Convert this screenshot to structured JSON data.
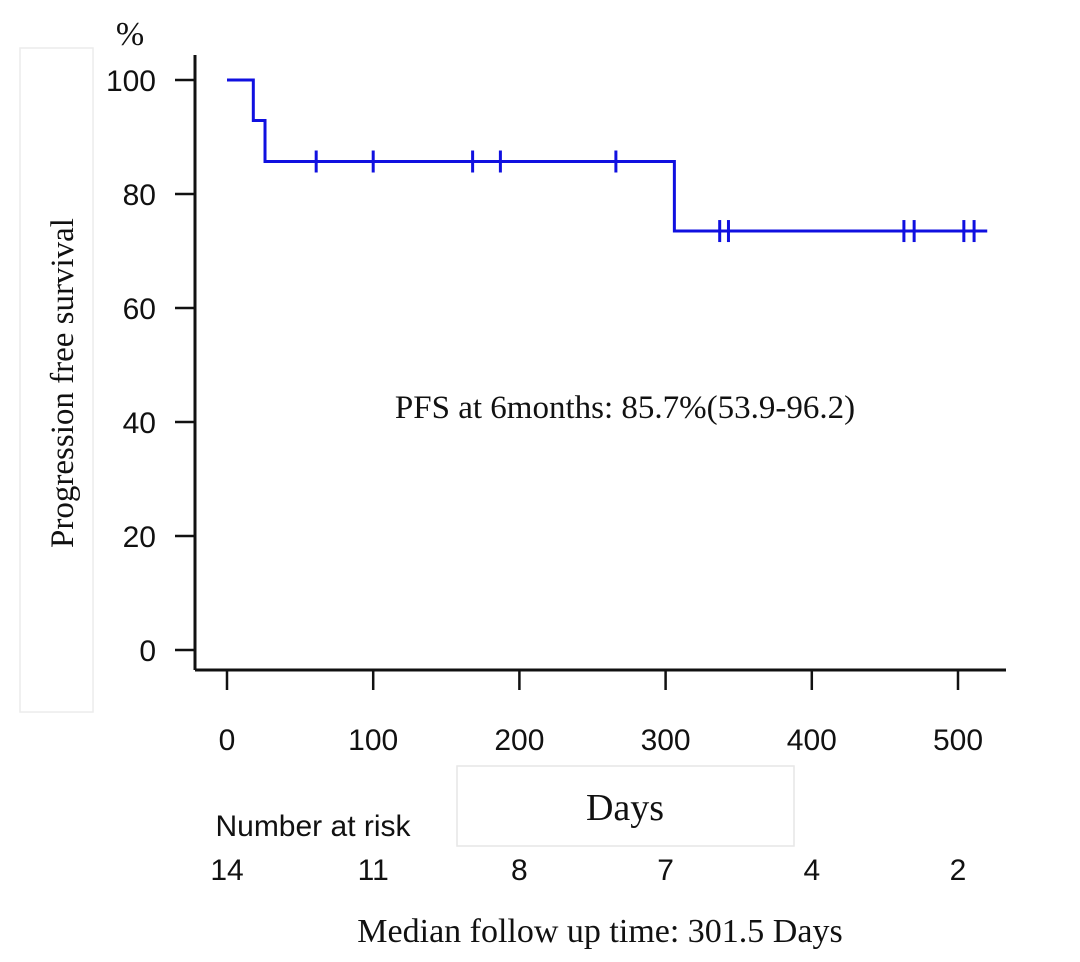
{
  "chart_data": {
    "type": "line",
    "subtype": "kaplan-meier",
    "ylabel": "Progression free survival",
    "yunit": "%",
    "xlabel": "Days",
    "xlim": [
      -20,
      530
    ],
    "ylim": [
      0,
      100
    ],
    "xticks": [
      0,
      100,
      200,
      300,
      400,
      500
    ],
    "yticks": [
      0,
      20,
      40,
      60,
      80,
      100
    ],
    "series": [
      {
        "name": "PFS",
        "color": "#1010e0",
        "steps": [
          {
            "x": 0,
            "y": 100
          },
          {
            "x": 18,
            "y": 92.9
          },
          {
            "x": 26,
            "y": 85.7
          },
          {
            "x": 306,
            "y": 73.5
          },
          {
            "x": 520,
            "y": 73.5
          }
        ],
        "censored": [
          {
            "x": 61,
            "y": 85.7
          },
          {
            "x": 100,
            "y": 85.7
          },
          {
            "x": 168,
            "y": 85.7
          },
          {
            "x": 187,
            "y": 85.7
          },
          {
            "x": 266,
            "y": 85.7
          },
          {
            "x": 337,
            "y": 73.5
          },
          {
            "x": 343,
            "y": 73.5
          },
          {
            "x": 463,
            "y": 73.5
          },
          {
            "x": 470,
            "y": 73.5
          },
          {
            "x": 504,
            "y": 73.5
          },
          {
            "x": 511,
            "y": 73.5
          }
        ]
      }
    ],
    "annotation": "PFS at 6months: 85.7%(53.9-96.2)",
    "risk_table": {
      "label": "Number at risk",
      "times": [
        0,
        100,
        200,
        300,
        400,
        500
      ],
      "values": [
        14,
        11,
        8,
        7,
        4,
        2
      ]
    },
    "footnote": "Median follow up time: 301.5 Days"
  }
}
